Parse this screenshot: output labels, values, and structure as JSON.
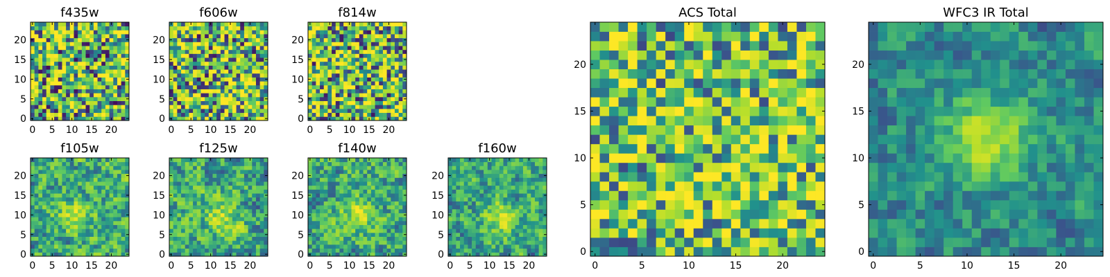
{
  "colormap": [
    "#440154",
    "#3b528b",
    "#21918c",
    "#5ec962",
    "#b5de2b",
    "#fde725"
  ],
  "chart_data": [
    {
      "id": "f435w",
      "type": "heatmap",
      "title": "f435w",
      "size": 25,
      "xticks": [
        "0",
        "5",
        "10",
        "15",
        "20"
      ],
      "yticks": [
        "0",
        "5",
        "10",
        "15",
        "20"
      ],
      "pattern": "noise",
      "seed": 11,
      "center": [
        0,
        0
      ],
      "amp": 0.0,
      "noise": 0.55,
      "base": 0.58
    },
    {
      "id": "f606w",
      "type": "heatmap",
      "title": "f606w",
      "size": 25,
      "xticks": [
        "0",
        "5",
        "10",
        "15",
        "20"
      ],
      "yticks": [
        "0",
        "5",
        "10",
        "15",
        "20"
      ],
      "pattern": "noise",
      "seed": 23,
      "center": [
        17,
        6
      ],
      "amp": 0.15,
      "noise": 0.55,
      "base": 0.6
    },
    {
      "id": "f814w",
      "type": "heatmap",
      "title": "f814w",
      "size": 25,
      "xticks": [
        "0",
        "5",
        "10",
        "15",
        "20"
      ],
      "yticks": [
        "0",
        "5",
        "10",
        "15",
        "20"
      ],
      "pattern": "noise",
      "seed": 37,
      "center": [
        0,
        0
      ],
      "amp": 0.0,
      "noise": 0.55,
      "base": 0.6
    },
    {
      "id": "f105w",
      "type": "heatmap",
      "title": "f105w",
      "size": 25,
      "xticks": [
        "0",
        "5",
        "10",
        "15",
        "20"
      ],
      "yticks": [
        "0",
        "5",
        "10",
        "15",
        "20"
      ],
      "pattern": "source",
      "seed": 41,
      "center": [
        11,
        10
      ],
      "amp": 0.3,
      "noise": 0.4,
      "base": 0.5
    },
    {
      "id": "f125w",
      "type": "heatmap",
      "title": "f125w",
      "size": 25,
      "xticks": [
        "0",
        "5",
        "10",
        "15",
        "20"
      ],
      "yticks": [
        "0",
        "5",
        "10",
        "15",
        "20"
      ],
      "pattern": "source",
      "seed": 53,
      "center": [
        13,
        9
      ],
      "amp": 0.3,
      "noise": 0.4,
      "base": 0.5
    },
    {
      "id": "f140w",
      "type": "heatmap",
      "title": "f140w",
      "size": 25,
      "xticks": [
        "0",
        "5",
        "10",
        "15",
        "20"
      ],
      "yticks": [
        "0",
        "5",
        "10",
        "15",
        "20"
      ],
      "pattern": "source",
      "seed": 67,
      "center": [
        12,
        10
      ],
      "amp": 0.3,
      "noise": 0.38,
      "base": 0.5
    },
    {
      "id": "f160w",
      "type": "heatmap",
      "title": "f160w",
      "size": 25,
      "xticks": [
        "0",
        "5",
        "10",
        "15",
        "20"
      ],
      "yticks": [
        "0",
        "5",
        "10",
        "15",
        "20"
      ],
      "pattern": "source",
      "seed": 79,
      "center": [
        13,
        9
      ],
      "amp": 0.35,
      "noise": 0.35,
      "base": 0.48
    },
    {
      "id": "acs_total",
      "type": "heatmap",
      "title": "ACS Total",
      "size": 25,
      "xticks": [
        "0",
        "5",
        "10",
        "15",
        "20"
      ],
      "yticks": [
        "0",
        "5",
        "10",
        "15",
        "20"
      ],
      "pattern": "noise",
      "seed": 97,
      "center": [
        18,
        6
      ],
      "amp": 0.1,
      "noise": 0.45,
      "base": 0.62
    },
    {
      "id": "wfc3_ir_total",
      "type": "heatmap",
      "title": "WFC3 IR Total",
      "size": 25,
      "xticks": [
        "0",
        "5",
        "10",
        "15",
        "20"
      ],
      "yticks": [
        "0",
        "5",
        "10",
        "15",
        "20"
      ],
      "pattern": "source",
      "seed": 113,
      "center": [
        12,
        12
      ],
      "amp": 0.42,
      "noise": 0.25,
      "base": 0.38
    }
  ]
}
